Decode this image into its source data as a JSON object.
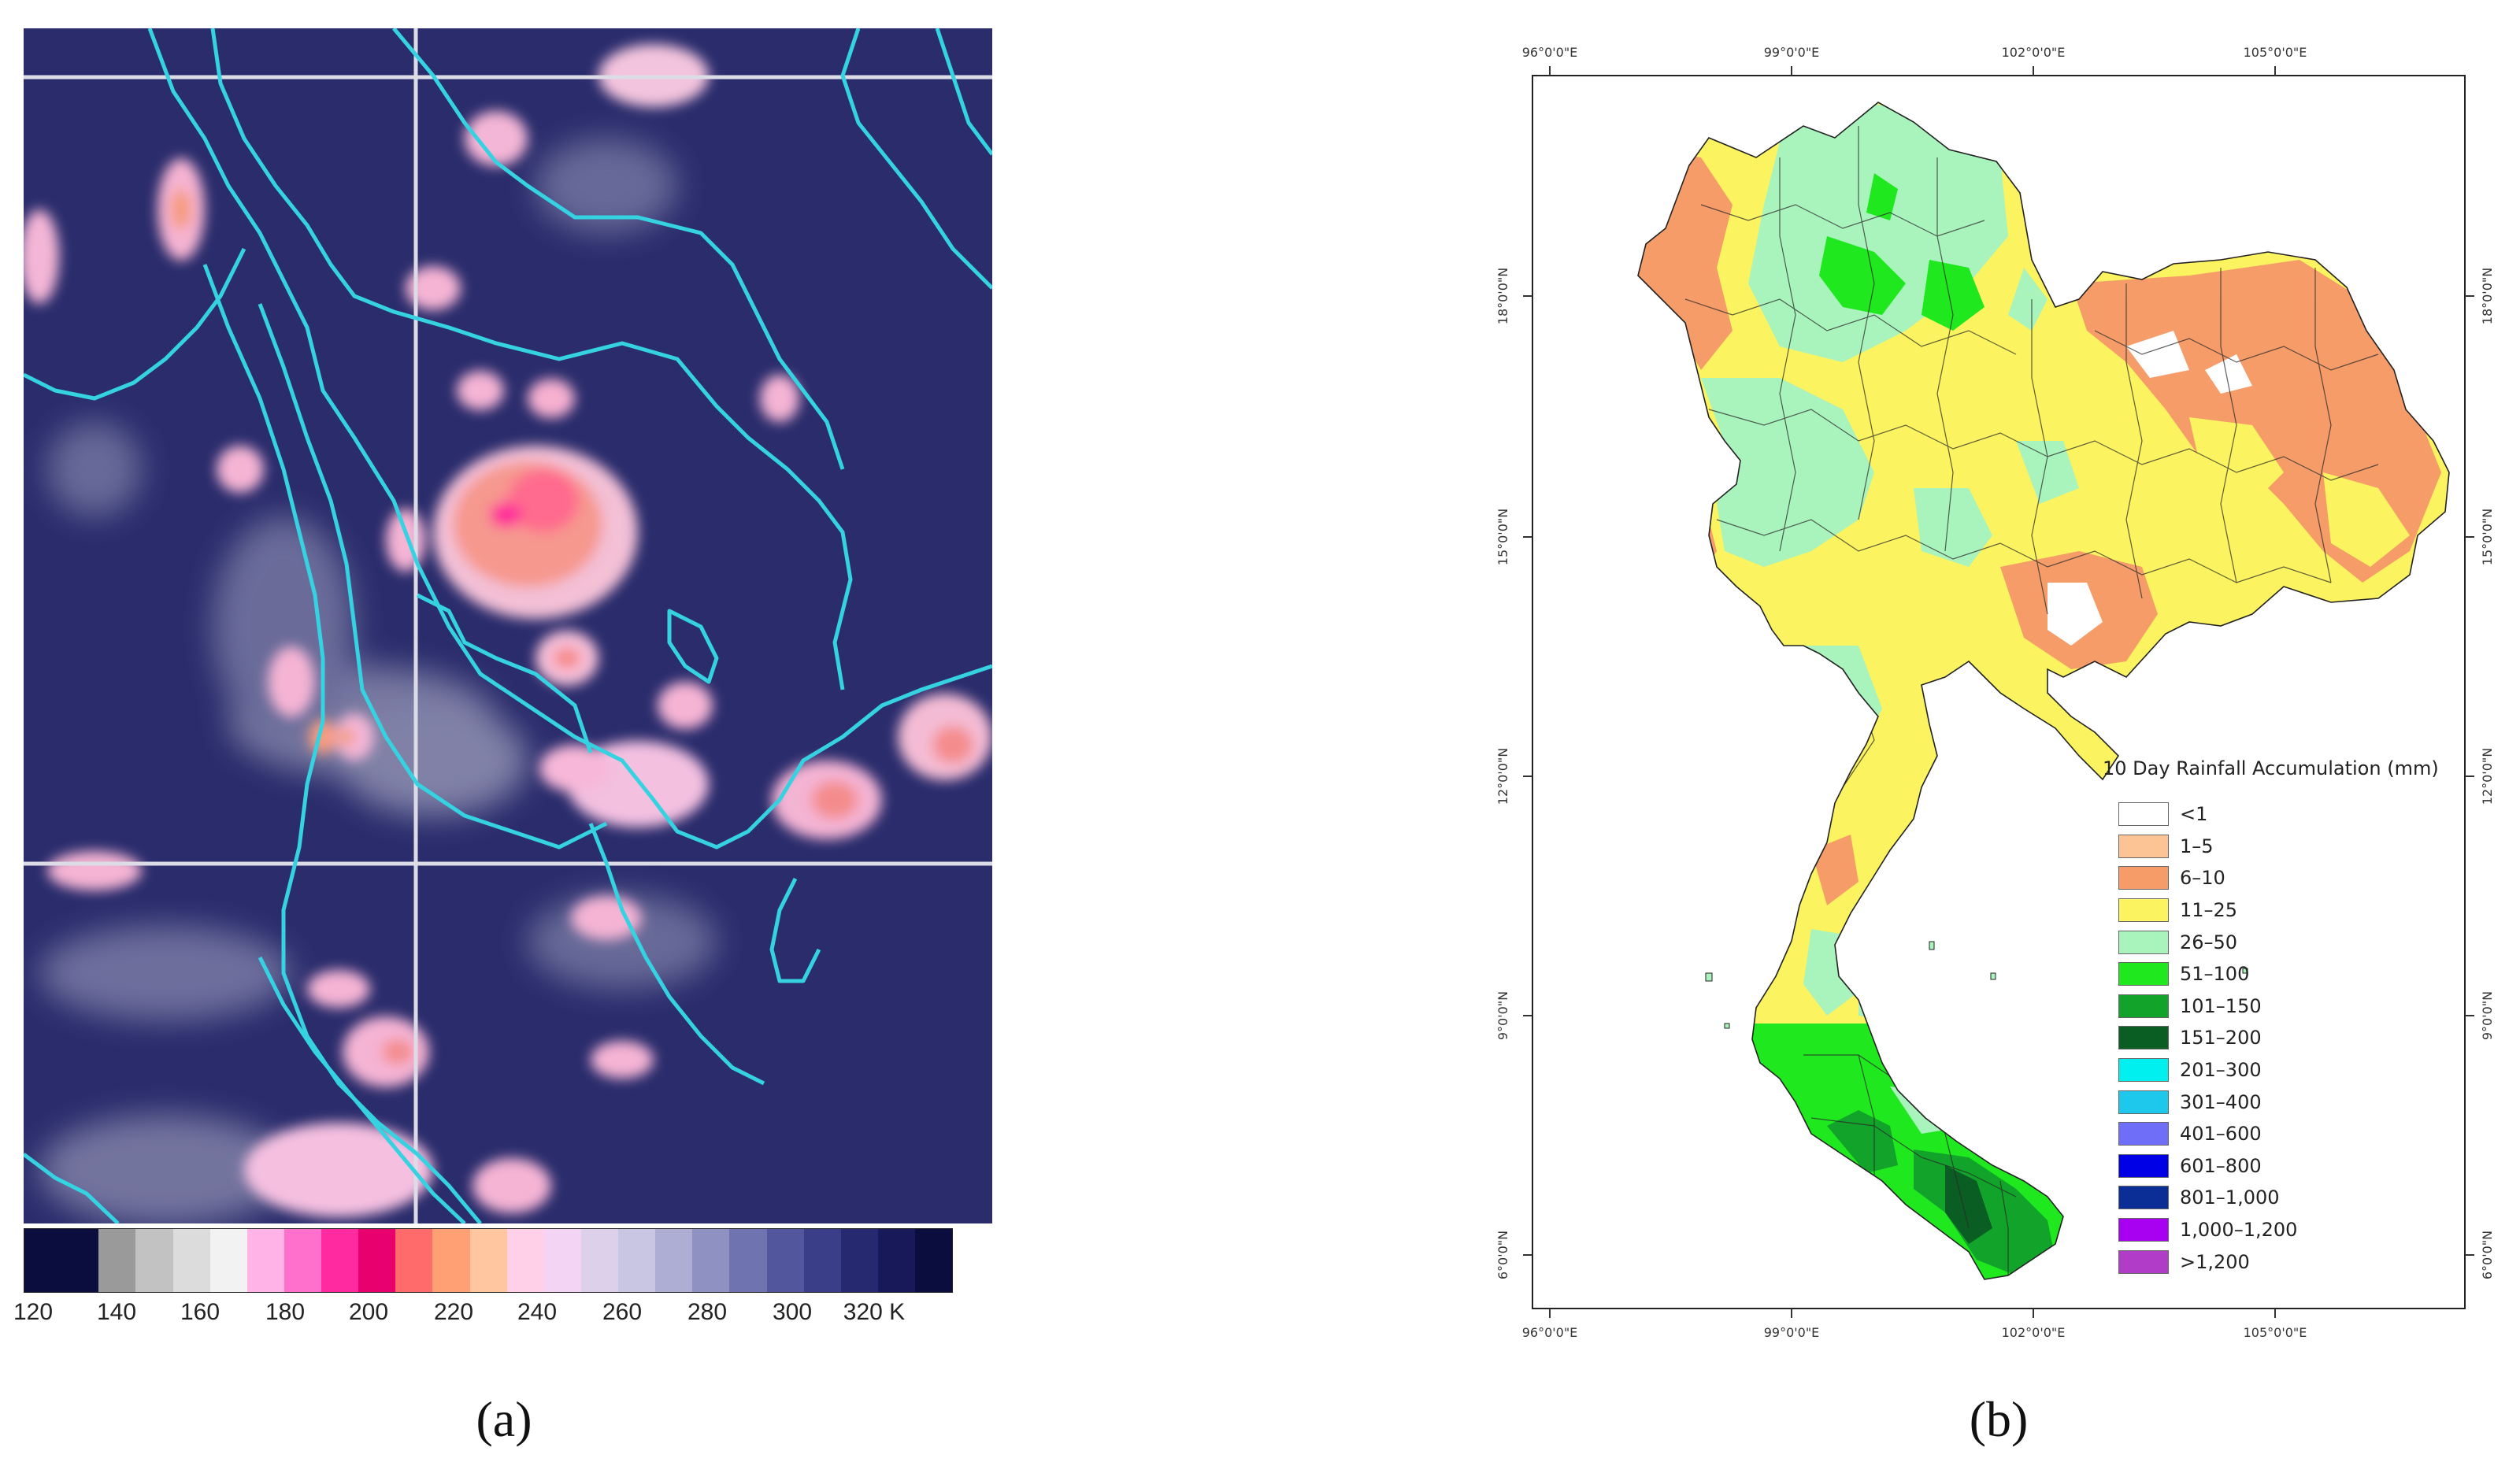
{
  "panel_a": {
    "caption": "(a)",
    "colorbar": {
      "tick_labels": [
        "120",
        "140",
        "160",
        "180",
        "200",
        "220",
        "240",
        "260",
        "280",
        "300",
        "320 K"
      ],
      "colors": [
        "#0b0d3e",
        "#0b0d3e",
        "#9a9a9a",
        "#c2c2c2",
        "#dcdcdc",
        "#f2f2f2",
        "#ffb3e6",
        "#ff70cc",
        "#ff2aa0",
        "#e8006e",
        "#ff6a6a",
        "#ffa074",
        "#ffc6a0",
        "#ffd0e8",
        "#f4d4f4",
        "#dcd0ea",
        "#c8c6e2",
        "#aeaed4",
        "#8f91c2",
        "#6f73b0",
        "#52569c",
        "#3a3e88",
        "#26296f",
        "#171959",
        "#0b0d3e"
      ]
    }
  },
  "panel_b": {
    "caption": "(b)",
    "x_tick_labels": [
      "96°0'0\"E",
      "99°0'0\"E",
      "102°0'0\"E",
      "105°0'0\"E"
    ],
    "y_tick_labels": [
      "18°0'0\"N",
      "15°0'0\"N",
      "12°0'0\"N",
      "9°0'0\"N",
      "6°0'0\"N"
    ],
    "legend": {
      "title": "10 Day Rainfall Accumulation (mm)",
      "items": [
        {
          "label": "<1",
          "color": "#ffffff"
        },
        {
          "label": "1–5",
          "color": "#fcc494"
        },
        {
          "label": "6–10",
          "color": "#f59c68"
        },
        {
          "label": "11–25",
          "color": "#fbf35f"
        },
        {
          "label": "26–50",
          "color": "#a9f3bd"
        },
        {
          "label": "51–100",
          "color": "#1fe81f"
        },
        {
          "label": "101–150",
          "color": "#12a32a"
        },
        {
          "label": "151–200",
          "color": "#0a5e23"
        },
        {
          "label": "201–300",
          "color": "#00f0f0"
        },
        {
          "label": "301–400",
          "color": "#1ec8ec"
        },
        {
          "label": "401–600",
          "color": "#6e6ef8"
        },
        {
          "label": "601–800",
          "color": "#0000e6"
        },
        {
          "label": "801–1,000",
          "color": "#0b2d96"
        },
        {
          "label": "1,000–1,200",
          "color": "#a800f0"
        },
        {
          "label": ">1,200",
          "color": "#b03cc8"
        }
      ]
    }
  }
}
